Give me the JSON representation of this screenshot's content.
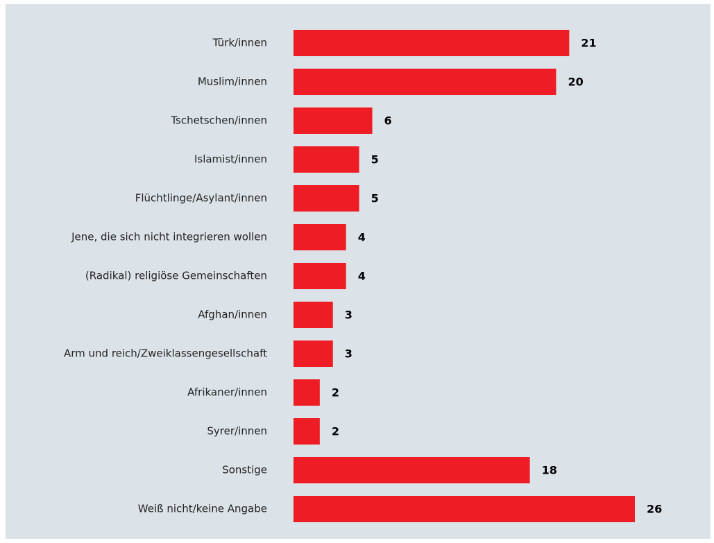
{
  "chart_data": {
    "type": "bar",
    "orientation": "horizontal",
    "color": "#ee1c25",
    "categories": [
      "Türk/innen",
      "Muslim/innen",
      "Tschetschen/innen",
      "Islamist/innen",
      "Flüchtlinge/Asylant/innen",
      "Jene, die sich nicht integrieren wollen",
      "(Radikal) religiöse Gemeinschaften",
      "Afghan/innen",
      "Arm und reich/Zweiklassengesellschaft",
      "Afrikaner/innen",
      "Syrer/innen",
      "Sonstige",
      "Weiß nicht/keine Angabe"
    ],
    "values": [
      21,
      20,
      6,
      5,
      5,
      4,
      4,
      3,
      3,
      2,
      2,
      18,
      26
    ]
  }
}
